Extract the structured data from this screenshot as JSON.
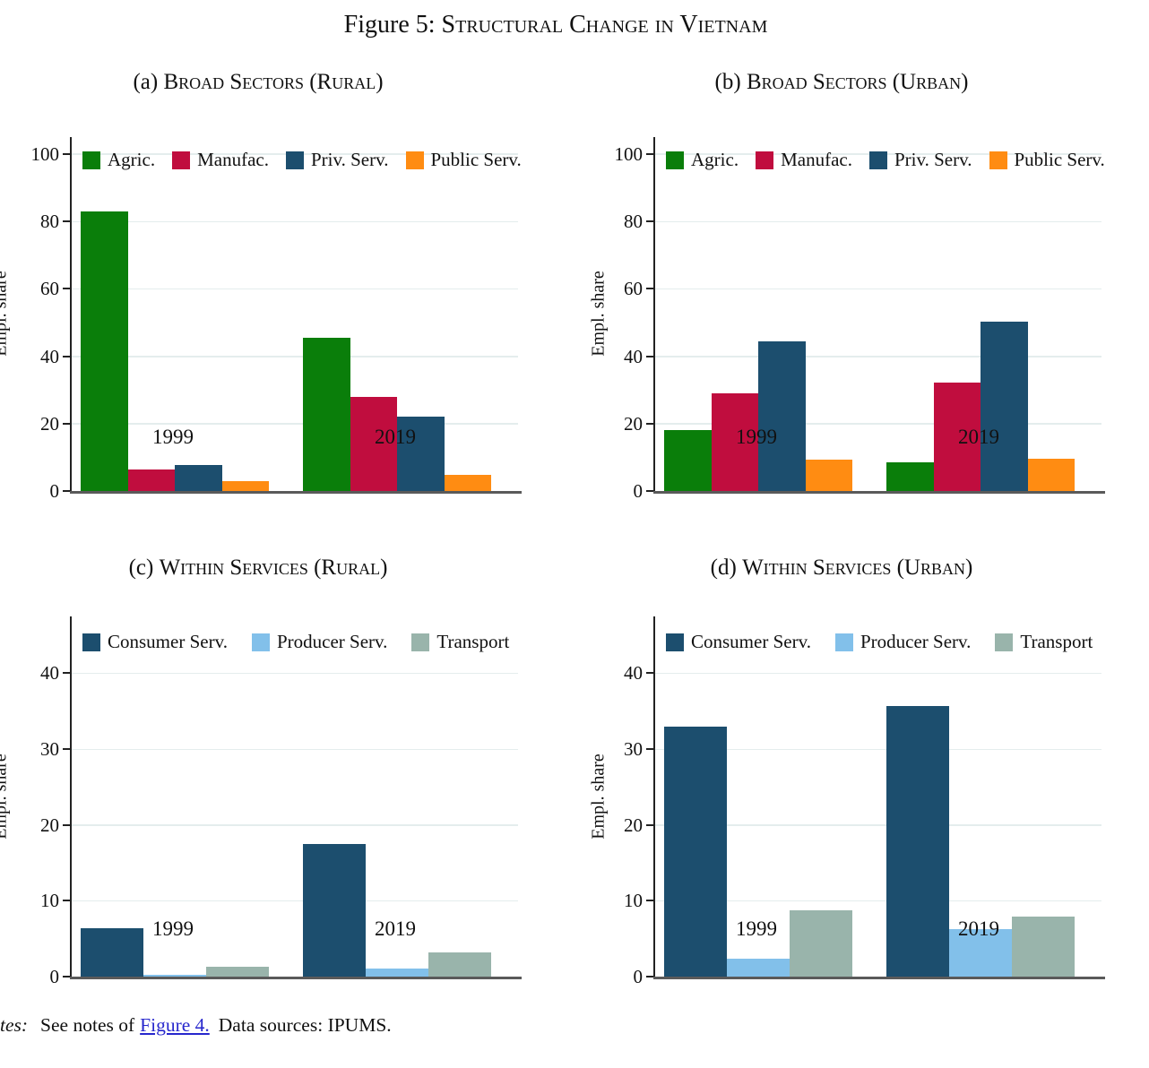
{
  "figure": {
    "label": "Figure 5:",
    "title": "Structural Change in Vietnam"
  },
  "note": {
    "prefix_italic": "tes:",
    "before_link": "See notes of",
    "link_label": "Figure 4.",
    "after_link": "Data sources: IPUMS."
  },
  "colors": {
    "agriculture": "#0a7e0a",
    "manufacturing": "#c00d3e",
    "private_services": "#1c4e6e",
    "public_services": "#ff8c12",
    "consumer_services": "#1c4e6e",
    "producer_services": "#82c0ea",
    "transport": "#99b4ab",
    "gridline": "#e4eded",
    "link_blue": "#2727cd"
  },
  "chart_data": [
    {
      "id": "a",
      "type": "bar",
      "panel_label": "(a)",
      "title": "Broad Sectors (Rural)",
      "ylabel": "Empl. share",
      "xlabel": "",
      "categories": [
        "1999",
        "2019"
      ],
      "ylim": [
        0,
        100
      ],
      "yticks": [
        0,
        20,
        40,
        60,
        80,
        100
      ],
      "grid": true,
      "legend_position": "top-left-inside",
      "series": [
        {
          "name": "Agric.",
          "color": "#0a7e0a",
          "values": [
            83.0,
            45.5
          ]
        },
        {
          "name": "Manufac.",
          "color": "#c00d3e",
          "values": [
            6.3,
            28.0
          ]
        },
        {
          "name": "Priv. Serv.",
          "color": "#1c4e6e",
          "values": [
            7.7,
            22.0
          ]
        },
        {
          "name": "Public Serv.",
          "color": "#ff8c12",
          "values": [
            3.0,
            4.8
          ]
        }
      ]
    },
    {
      "id": "b",
      "type": "bar",
      "panel_label": "(b)",
      "title": "Broad Sectors (Urban)",
      "ylabel": "Empl. share",
      "xlabel": "",
      "categories": [
        "1999",
        "2019"
      ],
      "ylim": [
        0,
        100
      ],
      "yticks": [
        0,
        20,
        40,
        60,
        80,
        100
      ],
      "grid": true,
      "legend_position": "top-left-inside",
      "series": [
        {
          "name": "Agric.",
          "color": "#0a7e0a",
          "values": [
            18.0,
            8.6
          ]
        },
        {
          "name": "Manufac.",
          "color": "#c00d3e",
          "values": [
            29.0,
            32.3
          ]
        },
        {
          "name": "Priv. Serv.",
          "color": "#1c4e6e",
          "values": [
            44.3,
            50.2
          ]
        },
        {
          "name": "Public Serv.",
          "color": "#ff8c12",
          "values": [
            9.2,
            9.5
          ]
        }
      ]
    },
    {
      "id": "c",
      "type": "bar",
      "panel_label": "(c)",
      "title": "Within Services (Rural)",
      "ylabel": "Empl. share",
      "xlabel": "",
      "categories": [
        "1999",
        "2019"
      ],
      "ylim": [
        0,
        40
      ],
      "yticks": [
        0,
        10,
        20,
        30,
        40
      ],
      "grid": true,
      "legend_position": "top-left-inside",
      "series": [
        {
          "name": "Consumer Serv.",
          "color": "#1c4e6e",
          "values": [
            6.4,
            17.5
          ]
        },
        {
          "name": "Producer Serv.",
          "color": "#82c0ea",
          "values": [
            0.25,
            1.1
          ]
        },
        {
          "name": "Transport",
          "color": "#99b4ab",
          "values": [
            1.35,
            3.2
          ]
        }
      ]
    },
    {
      "id": "d",
      "type": "bar",
      "panel_label": "(d)",
      "title": "Within Services (Urban)",
      "ylabel": "Empl. share",
      "xlabel": "",
      "categories": [
        "1999",
        "2019"
      ],
      "ylim": [
        0,
        40
      ],
      "yticks": [
        0,
        10,
        20,
        30,
        40
      ],
      "grid": true,
      "legend_position": "top-left-inside",
      "series": [
        {
          "name": "Consumer Serv.",
          "color": "#1c4e6e",
          "values": [
            33.0,
            35.7
          ]
        },
        {
          "name": "Producer Serv.",
          "color": "#82c0ea",
          "values": [
            2.4,
            6.3
          ]
        },
        {
          "name": "Transport",
          "color": "#99b4ab",
          "values": [
            8.7,
            7.9
          ]
        }
      ]
    }
  ]
}
